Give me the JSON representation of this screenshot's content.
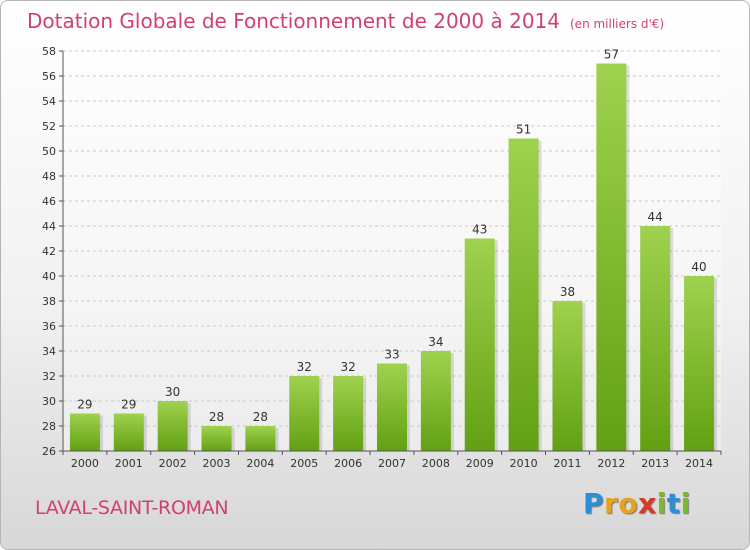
{
  "chart_data": {
    "type": "bar",
    "title": "Dotation Globale de Fonctionnement de 2000 à 2014",
    "subtitle": "(en milliers d'€)",
    "categories": [
      "2000",
      "2001",
      "2002",
      "2003",
      "2004",
      "2005",
      "2006",
      "2007",
      "2008",
      "2009",
      "2010",
      "2011",
      "2012",
      "2013",
      "2014"
    ],
    "values": [
      29,
      29,
      30,
      28,
      28,
      32,
      32,
      33,
      34,
      43,
      51,
      38,
      57,
      44,
      40
    ],
    "ylim": [
      26,
      58
    ],
    "yticks": [
      26,
      28,
      30,
      32,
      34,
      36,
      38,
      40,
      42,
      44,
      46,
      48,
      50,
      52,
      54,
      56,
      58
    ],
    "grid": true,
    "bar_color_top": "#9fd24f",
    "bar_color_bottom": "#62a012"
  },
  "place_name": "LAVAL-SAINT-ROMAN",
  "logo": {
    "letters": [
      "P",
      "r",
      "o",
      "x",
      "i",
      "t",
      "i"
    ],
    "colors": [
      "#2a8fd6",
      "#e8a21e",
      "#e8a21e",
      "#d63a2a",
      "#7cba2a",
      "#2a8fd6",
      "#7cba2a"
    ]
  },
  "colors": {
    "title": "#d2416d",
    "grid": "#c8c8c8"
  }
}
